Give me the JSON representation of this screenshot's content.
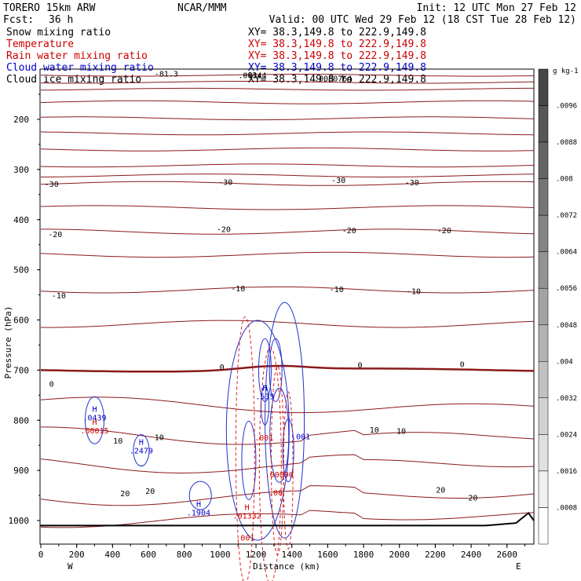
{
  "header": {
    "model": "TORERO  15km ARW",
    "center": "NCAR/MMM",
    "init": "Init: 12 UTC Mon 27 Feb 12",
    "fcst_label": "Fcst:",
    "fcst_value": "36 h",
    "valid": "Valid: 00 UTC Wed 29 Feb 12 (18 CST Tue 28 Feb 12)"
  },
  "fields": [
    {
      "name": "Snow mixing ratio",
      "xy": "XY=  38.3,149.8 to 222.9,149.8",
      "color": "#000000"
    },
    {
      "name": "Temperature",
      "xy": "XY=  38.3,149.8 to 222.9,149.8",
      "color": "#cc0000"
    },
    {
      "name": "Rain water mixing ratio",
      "xy": "XY=  38.3,149.8 to 222.9,149.8",
      "color": "#cc0000"
    },
    {
      "name": "Cloud water mixing ratio",
      "xy": "XY=  38.3,149.8 to 222.9,149.8",
      "color": "#0000cc"
    },
    {
      "name": "Cloud ice mixing ratio",
      "xy": "XY=  38.3,149.8 to 222.9,149.8",
      "color": "#000000"
    }
  ],
  "chart_data": {
    "type": "contour",
    "xlabel": "Distance (km)",
    "ylabel": "Pressure (hPa)",
    "x_ticks": [
      0,
      200,
      400,
      600,
      800,
      1000,
      1200,
      1400,
      1600,
      1800,
      2000,
      2200,
      2400,
      2600
    ],
    "x_range": [
      0,
      2750
    ],
    "y_ticks": [
      200,
      300,
      400,
      500,
      600,
      700,
      800,
      900,
      1000
    ],
    "y_range": [
      1050,
      100
    ],
    "x_end_labels": {
      "left": "W",
      "right": "E"
    },
    "temperature_contours_C": [
      -80,
      -70,
      -60,
      -50,
      -40,
      -30,
      -20,
      -10,
      0,
      10,
      20
    ],
    "temperature_labels": [
      {
        "x": 60,
        "p": 330,
        "text": "-30"
      },
      {
        "x": 1030,
        "p": 326,
        "text": "-30"
      },
      {
        "x": 1660,
        "p": 322,
        "text": "-30"
      },
      {
        "x": 2070,
        "p": 327,
        "text": "-30"
      },
      {
        "x": 80,
        "p": 430,
        "text": "-20"
      },
      {
        "x": 1020,
        "p": 420,
        "text": "-20"
      },
      {
        "x": 1720,
        "p": 422,
        "text": "-20"
      },
      {
        "x": 2250,
        "p": 422,
        "text": "-20"
      },
      {
        "x": 100,
        "p": 552,
        "text": "-10"
      },
      {
        "x": 1100,
        "p": 538,
        "text": "-10"
      },
      {
        "x": 1650,
        "p": 540,
        "text": "-10"
      },
      {
        "x": 2080,
        "p": 544,
        "text": "-10"
      },
      {
        "x": 60,
        "p": 728,
        "text": "0"
      },
      {
        "x": 1010,
        "p": 695,
        "text": "0"
      },
      {
        "x": 1780,
        "p": 691,
        "text": "0"
      },
      {
        "x": 2350,
        "p": 689,
        "text": "0"
      },
      {
        "x": 430,
        "p": 842,
        "text": "10"
      },
      {
        "x": 660,
        "p": 835,
        "text": "10"
      },
      {
        "x": 1860,
        "p": 820,
        "text": "10"
      },
      {
        "x": 2010,
        "p": 822,
        "text": "10"
      },
      {
        "x": 470,
        "p": 947,
        "text": "20"
      },
      {
        "x": 610,
        "p": 942,
        "text": "20"
      },
      {
        "x": 2230,
        "p": 940,
        "text": "20"
      },
      {
        "x": 2410,
        "p": 955,
        "text": "20"
      },
      {
        "x": 700,
        "p": 110,
        "text": "-81.3"
      },
      {
        "x": 1180,
        "p": 112,
        "text": "-81."
      }
    ],
    "maxima_labels": [
      {
        "x": 300,
        "p": 800,
        "label": "H",
        "value": ".0439",
        "field": "Cloud water mixing ratio",
        "color": "#0000cc"
      },
      {
        "x": 300,
        "p": 826,
        "label": "H",
        "value": ".00015",
        "field": "Rain water mixing ratio",
        "color": "#cc0000"
      },
      {
        "x": 560,
        "p": 866,
        "label": "H",
        "value": ".2479",
        "field": "Cloud water mixing ratio",
        "color": "#0000cc"
      },
      {
        "x": 880,
        "p": 990,
        "label": "H",
        "value": ".1904",
        "field": "Cloud water mixing ratio",
        "color": "#0000cc"
      },
      {
        "x": 1150,
        "p": 996,
        "label": "H",
        "value": ".01332",
        "field": "Rain water mixing ratio",
        "color": "#cc0000"
      },
      {
        "x": 1250,
        "p": 758,
        "label": "H",
        "value": ".535",
        "field": "Cloud water mixing ratio",
        "color": "#0000cc"
      },
      {
        "x": 1245,
        "p": 840,
        "label": "",
        "value": ".001",
        "field": "Rain water mixing ratio",
        "color": "#cc0000"
      },
      {
        "x": 1450,
        "p": 838,
        "label": "",
        "value": ".001",
        "field": "Cloud water mixing ratio",
        "color": "#0000cc"
      },
      {
        "x": 1330,
        "p": 914,
        "label": "",
        "value": ".00090",
        "field": "Rain water mixing ratio",
        "color": "#cc0000"
      },
      {
        "x": 1310,
        "p": 950,
        "label": "",
        "value": ".00",
        "field": "Rain water mixing ratio",
        "color": "#cc0000"
      },
      {
        "x": 1140,
        "p": 1040,
        "label": "",
        "value": ".001",
        "field": "Rain water mixing ratio",
        "color": "#cc0000"
      },
      {
        "x": 1180,
        "p": 118,
        "label": "",
        "value": ".00344",
        "field": "Cloud ice mixing ratio",
        "color": "#000000"
      },
      {
        "x": 1630,
        "p": 124,
        "label": "",
        "value": ".0000764",
        "field": "Cloud ice mixing ratio",
        "color": "#000000"
      }
    ],
    "colorbar": {
      "unit": "g kg-1",
      "levels": [
        ".0008",
        ".0016",
        ".0024",
        ".0032",
        ".004",
        ".0048",
        ".0056",
        ".0064",
        ".0072",
        ".008",
        ".0088",
        ".0096"
      ]
    }
  }
}
